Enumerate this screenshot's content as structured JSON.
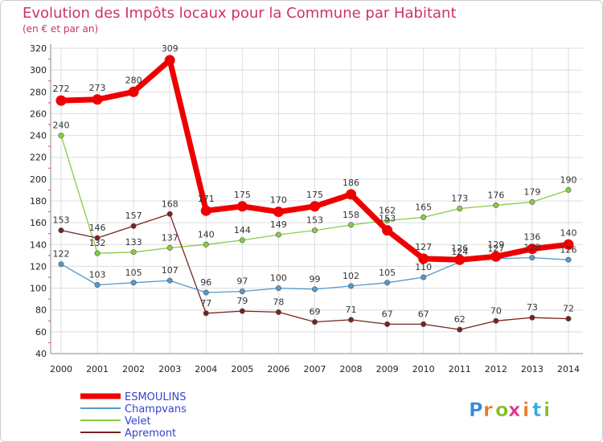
{
  "chart_data": {
    "type": "line",
    "title": "Evolution des Impôts locaux pour la Commune par Habitant",
    "subtitle": "(en € et par an)",
    "x": [
      "2000",
      "2001",
      "2002",
      "2003",
      "2004",
      "2005",
      "2006",
      "2007",
      "2008",
      "2009",
      "2010",
      "2011",
      "2012",
      "2013",
      "2014"
    ],
    "y_ticks": [
      "40",
      "60",
      "80",
      "100",
      "120",
      "140",
      "160",
      "180",
      "200",
      "220",
      "240",
      "260",
      "280",
      "300",
      "320"
    ],
    "ylim": [
      40,
      320
    ],
    "grid": true,
    "legend_position": "bottom-left",
    "series": [
      {
        "name": "Velet",
        "color": "#88cc44",
        "values": [
          240,
          132,
          133,
          137,
          140,
          144,
          149,
          153,
          158,
          162,
          165,
          173,
          176,
          179,
          190
        ],
        "labels": [
          "240",
          "132",
          "133",
          "137",
          "140",
          "144",
          "149",
          "153",
          "158",
          "162",
          "165",
          "173",
          "176",
          "179",
          "190"
        ]
      },
      {
        "name": "Apremont",
        "color": "#772222",
        "values": [
          153,
          146,
          157,
          168,
          77,
          79,
          78,
          69,
          71,
          67,
          67,
          62,
          70,
          73,
          72
        ],
        "labels": [
          "153",
          "146",
          "157",
          "168",
          "77",
          "79",
          "78",
          "69",
          "71",
          "67",
          "67",
          "62",
          "70",
          "73",
          "72"
        ]
      },
      {
        "name": "Champvans",
        "color": "#5599cc",
        "values": [
          122,
          103,
          105,
          107,
          96,
          97,
          100,
          99,
          102,
          105,
          110,
          124,
          127,
          128,
          126
        ],
        "labels": [
          "122",
          "103",
          "105",
          "107",
          "96",
          "97",
          "100",
          "99",
          "102",
          "105",
          "110",
          "124",
          "127",
          "128",
          "126"
        ]
      },
      {
        "name": "ESMOULINS",
        "color": "#ee0000",
        "values": [
          272,
          273,
          280,
          309,
          171,
          175,
          170,
          175,
          186,
          153,
          127,
          126,
          129,
          136,
          140
        ],
        "labels": [
          "272",
          "273",
          "280",
          "309",
          "171",
          "175",
          "170",
          "175",
          "186",
          "153",
          "127",
          "126",
          "129",
          "136",
          "140"
        ]
      }
    ],
    "legend": [
      "ESMOULINS",
      "Champvans",
      "Velet",
      "Apremont"
    ]
  },
  "branding": {
    "logo_text": "Proxiti",
    "logo_colors": [
      "#3388dd",
      "#ee7722",
      "#88bb22",
      "#dd3388",
      "#ee7722",
      "#33aadd",
      "#88bb22"
    ]
  },
  "theme": {
    "title_color": "#cc3366",
    "legend_text_color": "#3344cc",
    "grid_color": "#dddddd",
    "axis_color": "#888888",
    "tick_text_color": "#222222",
    "label_text_color": "#333333"
  }
}
